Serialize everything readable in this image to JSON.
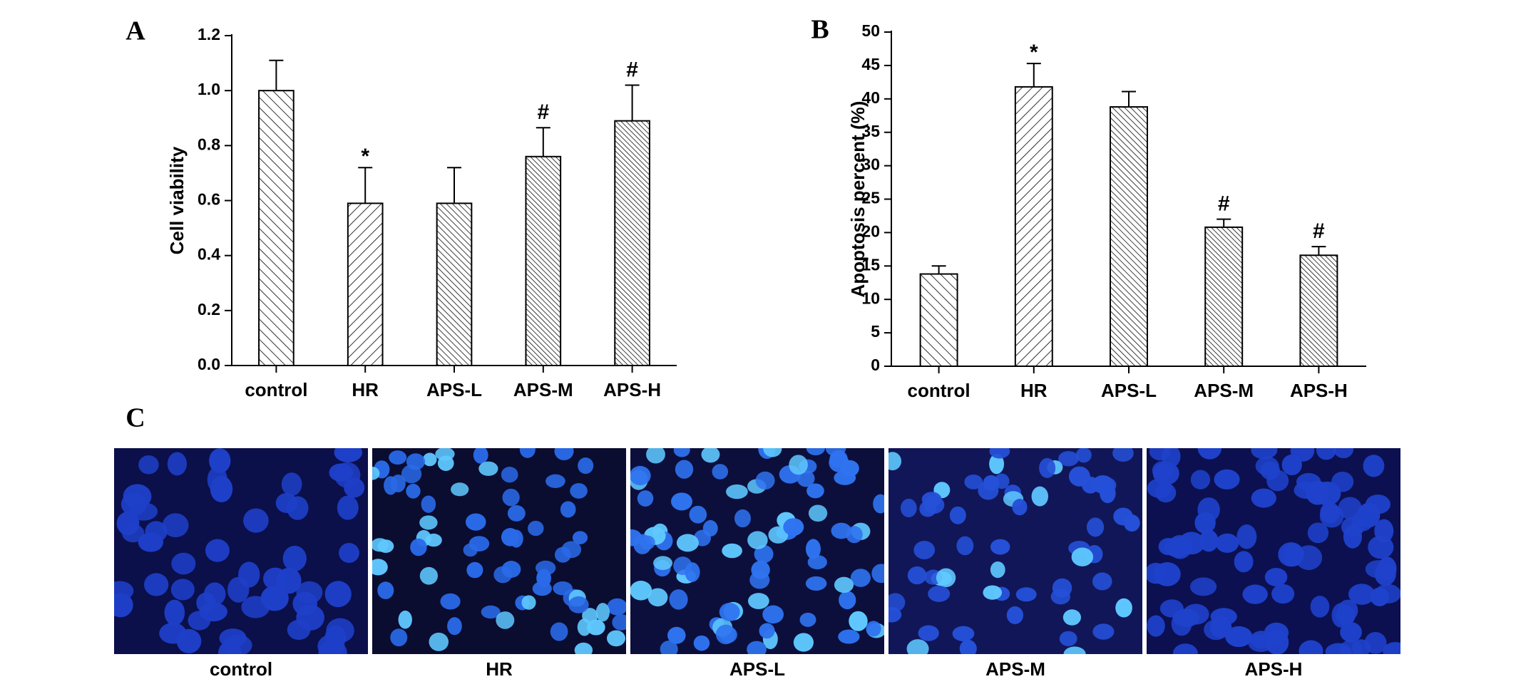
{
  "chart_data": [
    {
      "type": "bar",
      "panel_label": "A",
      "ylabel": "Cell viability",
      "categories": [
        "control",
        "HR",
        "APS-L",
        "APS-M",
        "APS-H"
      ],
      "values": [
        1.0,
        0.59,
        0.59,
        0.76,
        0.89
      ],
      "errors": [
        0.11,
        0.13,
        0.13,
        0.105,
        0.13
      ],
      "annotations": [
        {
          "category": "HR",
          "text": "*"
        },
        {
          "category": "APS-M",
          "text": "#"
        },
        {
          "category": "APS-H",
          "text": "#"
        }
      ],
      "ylim": [
        0,
        1.2
      ],
      "yticks": [
        {
          "value": 0,
          "label": "0.0"
        },
        0.2,
        0.4,
        0.6,
        0.8,
        {
          "value": 1,
          "label": "1.0"
        },
        1.2
      ]
    },
    {
      "type": "bar",
      "panel_label": "B",
      "ylabel": "Apoptosis percent (%)",
      "categories": [
        "control",
        "HR",
        "APS-L",
        "APS-M",
        "APS-H"
      ],
      "values": [
        13.8,
        41.8,
        38.8,
        20.8,
        16.6
      ],
      "errors": [
        1.2,
        3.5,
        2.3,
        1.2,
        1.3
      ],
      "annotations": [
        {
          "category": "HR",
          "text": "*"
        },
        {
          "category": "APS-M",
          "text": "#"
        },
        {
          "category": "APS-H",
          "text": "#"
        }
      ],
      "ylim": [
        0,
        50
      ],
      "yticks": [
        0,
        5,
        10,
        15,
        20,
        25,
        30,
        35,
        40,
        45,
        50
      ]
    }
  ],
  "panel_c": {
    "panel_label": "C",
    "captions": [
      "control",
      "HR",
      "APS-L",
      "APS-M",
      "APS-H"
    ]
  }
}
